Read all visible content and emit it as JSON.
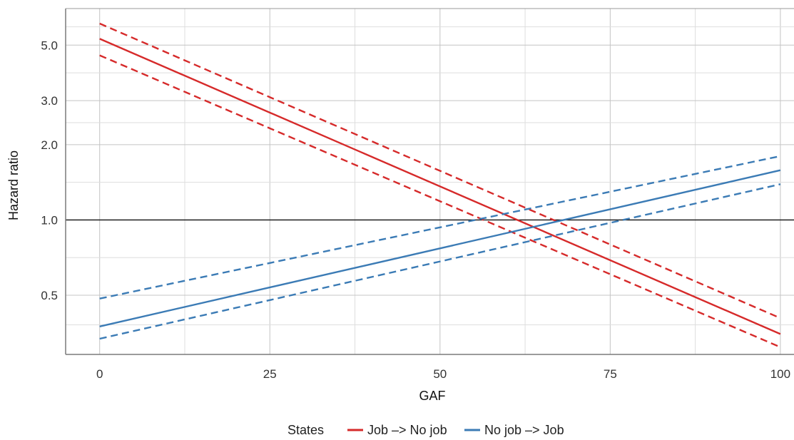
{
  "chart_data": {
    "type": "line",
    "title": "",
    "xlabel": "GAF",
    "ylabel": "Hazard ratio",
    "x_scale": "linear",
    "y_scale": "log",
    "xlim": [
      -5,
      102
    ],
    "ylim": [
      0.29,
      7.0
    ],
    "x_ticks": [
      0,
      25,
      50,
      75,
      100
    ],
    "x_tick_labels": [
      "0",
      "25",
      "50",
      "75",
      "100"
    ],
    "y_ticks": [
      0.5,
      1.0,
      2.0,
      3.0,
      5.0
    ],
    "y_tick_labels": [
      "0.5",
      "1.0",
      "2.0",
      "3.0",
      "5.0"
    ],
    "reference_line_y": 1.0,
    "grid": true,
    "legend": {
      "title": "States",
      "position": "bottom",
      "entries": [
        "Job –> No job",
        "No job –> Job"
      ]
    },
    "x": [
      0,
      100
    ],
    "series": [
      {
        "name": "Job –> No job",
        "color": "#d62a2a",
        "estimate": [
          5.3,
          0.35
        ],
        "lower": [
          4.55,
          0.31
        ],
        "upper": [
          6.1,
          0.405
        ]
      },
      {
        "name": "No job –> Job",
        "color": "#3b7bb5",
        "estimate": [
          0.375,
          1.58
        ],
        "lower": [
          0.335,
          1.39
        ],
        "upper": [
          0.485,
          1.8
        ]
      }
    ]
  }
}
